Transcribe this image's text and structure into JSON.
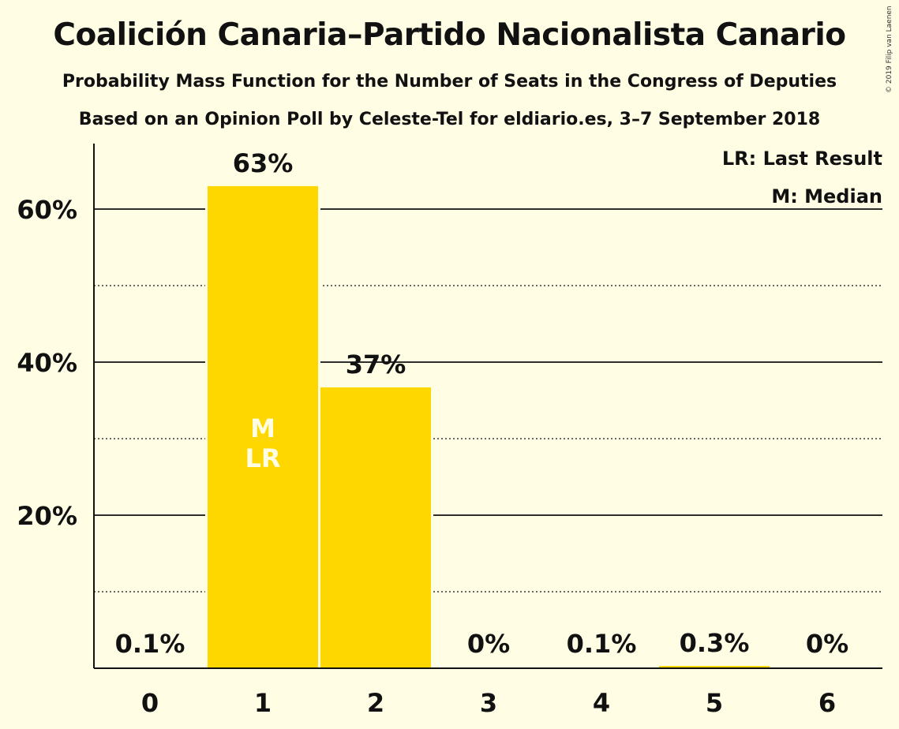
{
  "header": {
    "title": "Coalición Canaria–Partido Nacionalista Canario",
    "subtitle": "Probability Mass Function for the Number of Seats in the Congress of Deputies",
    "source": "Based on an Opinion Poll by Celeste-Tel for eldiario.es, 3–7 September 2018",
    "copyright": "© 2019 Filip van Laenen"
  },
  "legend": {
    "last_result": "LR: Last Result",
    "median": "M: Median"
  },
  "colors": {
    "background": "#FFFDE4",
    "bar": "#FFD700"
  },
  "chart_data": {
    "type": "bar",
    "title": "Coalición Canaria–Partido Nacionalista Canario",
    "subtitle": "Probability Mass Function for the Number of Seats in the Congress of Deputies",
    "categories": [
      "0",
      "1",
      "2",
      "3",
      "4",
      "5",
      "6"
    ],
    "values": [
      0.1,
      63,
      36.7,
      0,
      0.1,
      0.3,
      0
    ],
    "labels": [
      "0.1%",
      "63%",
      "37%",
      "0%",
      "0.1%",
      "0.3%",
      "0%"
    ],
    "median_index": 1,
    "last_result_index": 1,
    "median_mark": "M",
    "last_result_mark": "LR",
    "ylim": [
      0,
      68.5
    ],
    "yticks": [
      20,
      40,
      60
    ],
    "ytick_labels": [
      "20%",
      "40%",
      "60%"
    ],
    "minor_gridlines": [
      10,
      30,
      50
    ],
    "grid": true,
    "legend_position": "top-right"
  }
}
